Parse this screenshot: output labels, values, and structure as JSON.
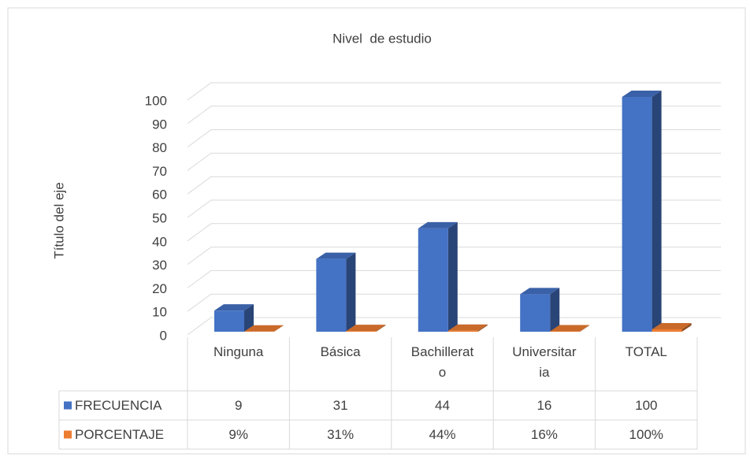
{
  "chart_data": {
    "type": "bar3d",
    "title": "Nivel  de estudio",
    "y_label": "Título del eje",
    "categories": [
      "Ninguna",
      "Básica",
      "Bachillerato",
      "Universitaria",
      "TOTAL"
    ],
    "series": [
      {
        "name": "FRECUENCIA",
        "color": "#4472c4",
        "values": [
          9,
          31,
          44,
          16,
          100
        ]
      },
      {
        "name": "PORCENTAJE",
        "color": "#ed7d31",
        "values": [
          0.09,
          0.31,
          0.44,
          0.16,
          1
        ],
        "value_labels": [
          "9%",
          "31%",
          "44%",
          "16%",
          "100%"
        ]
      }
    ],
    "ylim": [
      0,
      100
    ],
    "yticks": [
      0,
      10,
      20,
      30,
      40,
      50,
      60,
      70,
      80,
      90,
      100
    ],
    "grid": true,
    "data_table": true
  }
}
